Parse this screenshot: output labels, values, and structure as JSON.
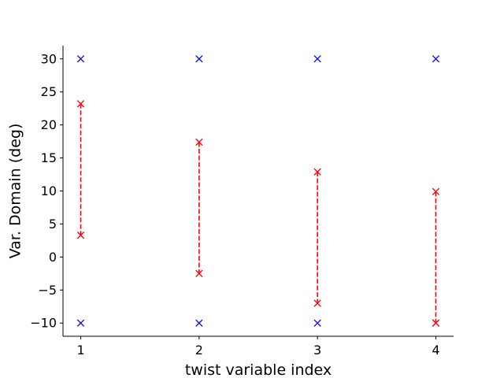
{
  "chart_data": {
    "type": "scatter",
    "title": "",
    "xlabel": "twist variable index",
    "ylabel": "Var. Domain (deg)",
    "xlim": [
      0.85,
      4.15
    ],
    "ylim": [
      -12,
      32
    ],
    "xticks": [
      1,
      2,
      3,
      4
    ],
    "xtick_labels": [
      "1",
      "2",
      "3",
      "4"
    ],
    "yticks": [
      -10,
      -5,
      0,
      5,
      10,
      15,
      20,
      25,
      30
    ],
    "ytick_labels": [
      "−10",
      "−5",
      "0",
      "5",
      "10",
      "15",
      "20",
      "25",
      "30"
    ],
    "grid": false,
    "spines": [
      "left",
      "bottom"
    ],
    "series": [
      {
        "role": "domain-bounds",
        "color": "#0000ff",
        "marker": "x",
        "line": "none",
        "points": [
          {
            "x": 1,
            "y": -10
          },
          {
            "x": 1,
            "y": 30
          },
          {
            "x": 2,
            "y": -10
          },
          {
            "x": 2,
            "y": 30
          },
          {
            "x": 3,
            "y": -10
          },
          {
            "x": 3,
            "y": 30
          },
          {
            "x": 4,
            "y": -10
          },
          {
            "x": 4,
            "y": 30
          }
        ]
      },
      {
        "role": "range",
        "color": "#ff0000",
        "marker": "x",
        "line": "dashed",
        "intervals": [
          {
            "x": 1,
            "low": 3.3,
            "high": 23.2
          },
          {
            "x": 2,
            "low": -2.5,
            "high": 17.4
          },
          {
            "x": 3,
            "low": -7.0,
            "high": 12.9
          },
          {
            "x": 4,
            "low": -10.0,
            "high": 9.9
          }
        ]
      }
    ]
  }
}
